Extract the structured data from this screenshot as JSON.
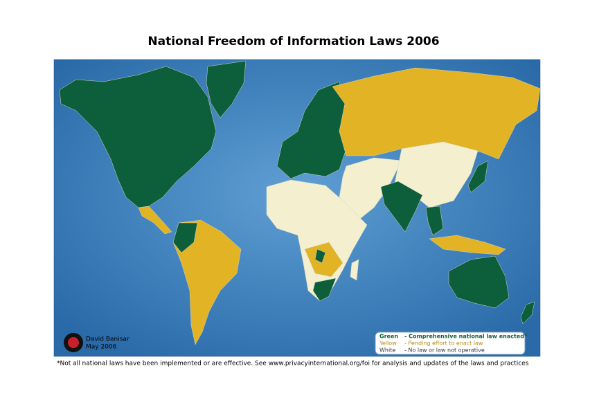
{
  "header": {
    "title": "National Freedom of Information Laws 2006"
  },
  "map": {
    "legend": [
      {
        "key": "Green",
        "description": "- Comprehensive national law enacted*"
      },
      {
        "key": "Yellow",
        "description": "- Pending effort to enact law"
      },
      {
        "key": "White",
        "description": "- No law or law not operative"
      }
    ],
    "credit": {
      "author": "David Banisar",
      "date": "May 2006"
    }
  },
  "footnote": "*Not all national laws have been implemented or are effective. See www.privacyinternational.org/foi for analysis and updates of the laws and practices"
}
